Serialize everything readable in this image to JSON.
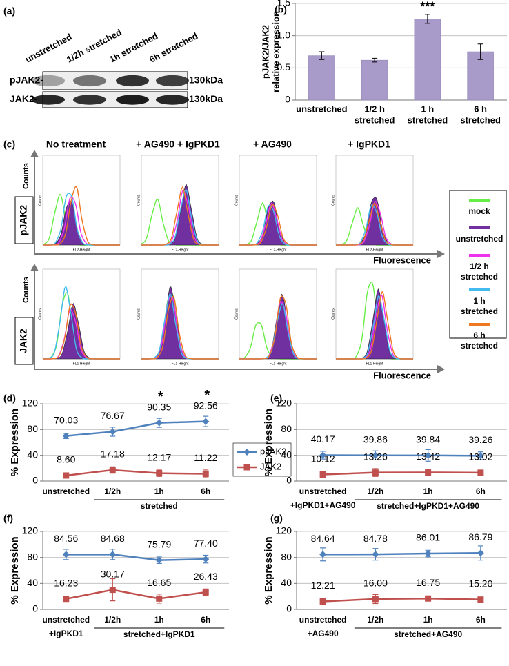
{
  "panel_labels": [
    "(a)",
    "(b)",
    "(c)",
    "(d)",
    "(e)",
    "(f)",
    "(g)"
  ],
  "blot": {
    "lanes": [
      "unstretched",
      "1/2h stretched",
      "1h stretched",
      "6h stretched"
    ],
    "rows": [
      "pJAK2-",
      "JAK2-"
    ],
    "sizes": [
      "130kDa",
      "130kDa"
    ]
  },
  "flow": {
    "treatments": [
      "No treatment",
      "+ AG490 + IgPKD1",
      "+ AG490",
      "+ IgPKD1"
    ],
    "rows": [
      "pJAK2",
      "JAK2"
    ],
    "ylabel": "Counts",
    "xlabel": "Fluorescence",
    "inset_ylabel": "Counts",
    "inset_xlabels": [
      "FL2-Height",
      "FL1-Height"
    ],
    "legend": [
      {
        "name": [
          "mock"
        ],
        "color": "#66ee44"
      },
      {
        "name": [
          "unstretched"
        ],
        "color": "#7030a0"
      },
      {
        "name": [
          "1/2 h",
          "stretched"
        ],
        "color": "#ee33ee"
      },
      {
        "name": [
          "1 h",
          "stretched"
        ],
        "color": "#44bbee"
      },
      {
        "name": [
          "6 h",
          "stretched"
        ],
        "color": "#ee7722"
      }
    ]
  },
  "chart_data": [
    {
      "type": "bar",
      "ylabel": [
        "pJAK2/JAK2",
        "relative expression"
      ],
      "categories": [
        [
          "unstretched"
        ],
        [
          "1/2 h",
          "stretched"
        ],
        [
          "1 h",
          "stretched"
        ],
        [
          "6 h",
          "stretched"
        ]
      ],
      "values": [
        0.69,
        0.62,
        1.26,
        0.75
      ],
      "errors": [
        0.06,
        0.03,
        0.07,
        0.12
      ],
      "value_annotations": [
        null,
        null,
        "***",
        null
      ],
      "color": "#a99bc9",
      "ylim": [
        0,
        1.5
      ],
      "yticks": [
        0,
        0.5,
        {
          "value": 1,
          "label": "1.0"
        },
        1.5
      ],
      "grid": true
    },
    {
      "type": "line",
      "ylabel": "% Expression",
      "categories": [
        [
          "unstretched"
        ],
        [
          "1/2h"
        ],
        [
          "1h"
        ],
        [
          "6h"
        ]
      ],
      "group_label": "stretched",
      "ylim": [
        0,
        120
      ],
      "yticks": [
        0,
        40,
        80,
        120
      ],
      "grid": true,
      "legend": true,
      "series": [
        {
          "name": "pJAK2",
          "color": "#4f81bd",
          "marker": "diamond",
          "values": [
            70.03,
            76.67,
            90.35,
            92.56
          ],
          "value_labels": [
            "70.03",
            "76.67",
            "90.35",
            "92.56"
          ],
          "errors": [
            4,
            7,
            7,
            8
          ],
          "annotations": [
            null,
            null,
            "*",
            "*"
          ]
        },
        {
          "name": "JAK2",
          "color": "#c0504d",
          "marker": "square",
          "values": [
            8.6,
            17.18,
            12.17,
            11.22
          ],
          "value_labels": [
            "8.60",
            "17.18",
            "12.17",
            "11.22"
          ],
          "errors": [
            4,
            5,
            5,
            6
          ]
        }
      ]
    },
    {
      "type": "line",
      "ylabel": "% Expression",
      "categories": [
        [
          "unstretched",
          "+IgPKD1+AG490"
        ],
        [
          "1/2h"
        ],
        [
          "1h"
        ],
        [
          "6h"
        ]
      ],
      "group_label": "stretched+IgPKD1+AG490",
      "ylim": [
        0,
        120
      ],
      "yticks": [
        0,
        40,
        80,
        120
      ],
      "grid": true,
      "series": [
        {
          "name": "pJAK2",
          "color": "#4f81bd",
          "marker": "diamond",
          "values": [
            40.17,
            39.86,
            39.84,
            39.26
          ],
          "value_labels": [
            "40.17",
            "39.86",
            "39.84",
            "39.26"
          ],
          "errors": [
            6,
            7,
            9,
            6
          ]
        },
        {
          "name": "JAK2",
          "color": "#c0504d",
          "marker": "square",
          "values": [
            10.12,
            13.26,
            13.42,
            13.02
          ],
          "value_labels": [
            "10.12",
            "13.26",
            "13.42",
            "13.02"
          ],
          "errors": [
            5,
            6,
            5,
            3
          ]
        }
      ]
    },
    {
      "type": "line",
      "ylabel": "% Expression",
      "categories": [
        [
          "unstretched",
          "+IgPKD1"
        ],
        [
          "1/2h"
        ],
        [
          "1h"
        ],
        [
          "6h"
        ]
      ],
      "group_label": "stretched+IgPKD1",
      "ylim": [
        0,
        120
      ],
      "yticks": [
        0,
        40,
        80,
        120
      ],
      "grid": true,
      "series": [
        {
          "name": "pJAK2",
          "color": "#4f81bd",
          "marker": "diamond",
          "values": [
            84.56,
            84.68,
            75.79,
            77.4
          ],
          "value_labels": [
            "84.56",
            "84.68",
            "75.79",
            "77.40"
          ],
          "errors": [
            8,
            8,
            5,
            6
          ]
        },
        {
          "name": "JAK2",
          "color": "#c0504d",
          "marker": "square",
          "values": [
            16.23,
            30.17,
            16.65,
            26.43
          ],
          "value_labels": [
            "16.23",
            "30.17",
            "16.65",
            "26.43"
          ],
          "errors": [
            3,
            17,
            7,
            5
          ]
        }
      ]
    },
    {
      "type": "line",
      "ylabel": "% Expression",
      "categories": [
        [
          "unstretched",
          "+AG490"
        ],
        [
          "1/2h"
        ],
        [
          "1h"
        ],
        [
          "6h"
        ]
      ],
      "group_label": "stretched+AG490",
      "ylim": [
        0,
        120
      ],
      "yticks": [
        0,
        40,
        80,
        120
      ],
      "grid": true,
      "series": [
        {
          "name": "pJAK2",
          "color": "#4f81bd",
          "marker": "diamond",
          "values": [
            84.64,
            84.78,
            86.01,
            86.79
          ],
          "value_labels": [
            "84.64",
            "84.78",
            "86.01",
            "86.79"
          ],
          "errors": [
            10,
            9,
            5,
            11
          ]
        },
        {
          "name": "JAK2",
          "color": "#c0504d",
          "marker": "square",
          "values": [
            12.21,
            16.0,
            16.75,
            15.2
          ],
          "value_labels": [
            "12.21",
            "16.00",
            "16.75",
            "15.20"
          ],
          "errors": [
            5,
            7,
            3,
            3
          ]
        }
      ]
    }
  ]
}
